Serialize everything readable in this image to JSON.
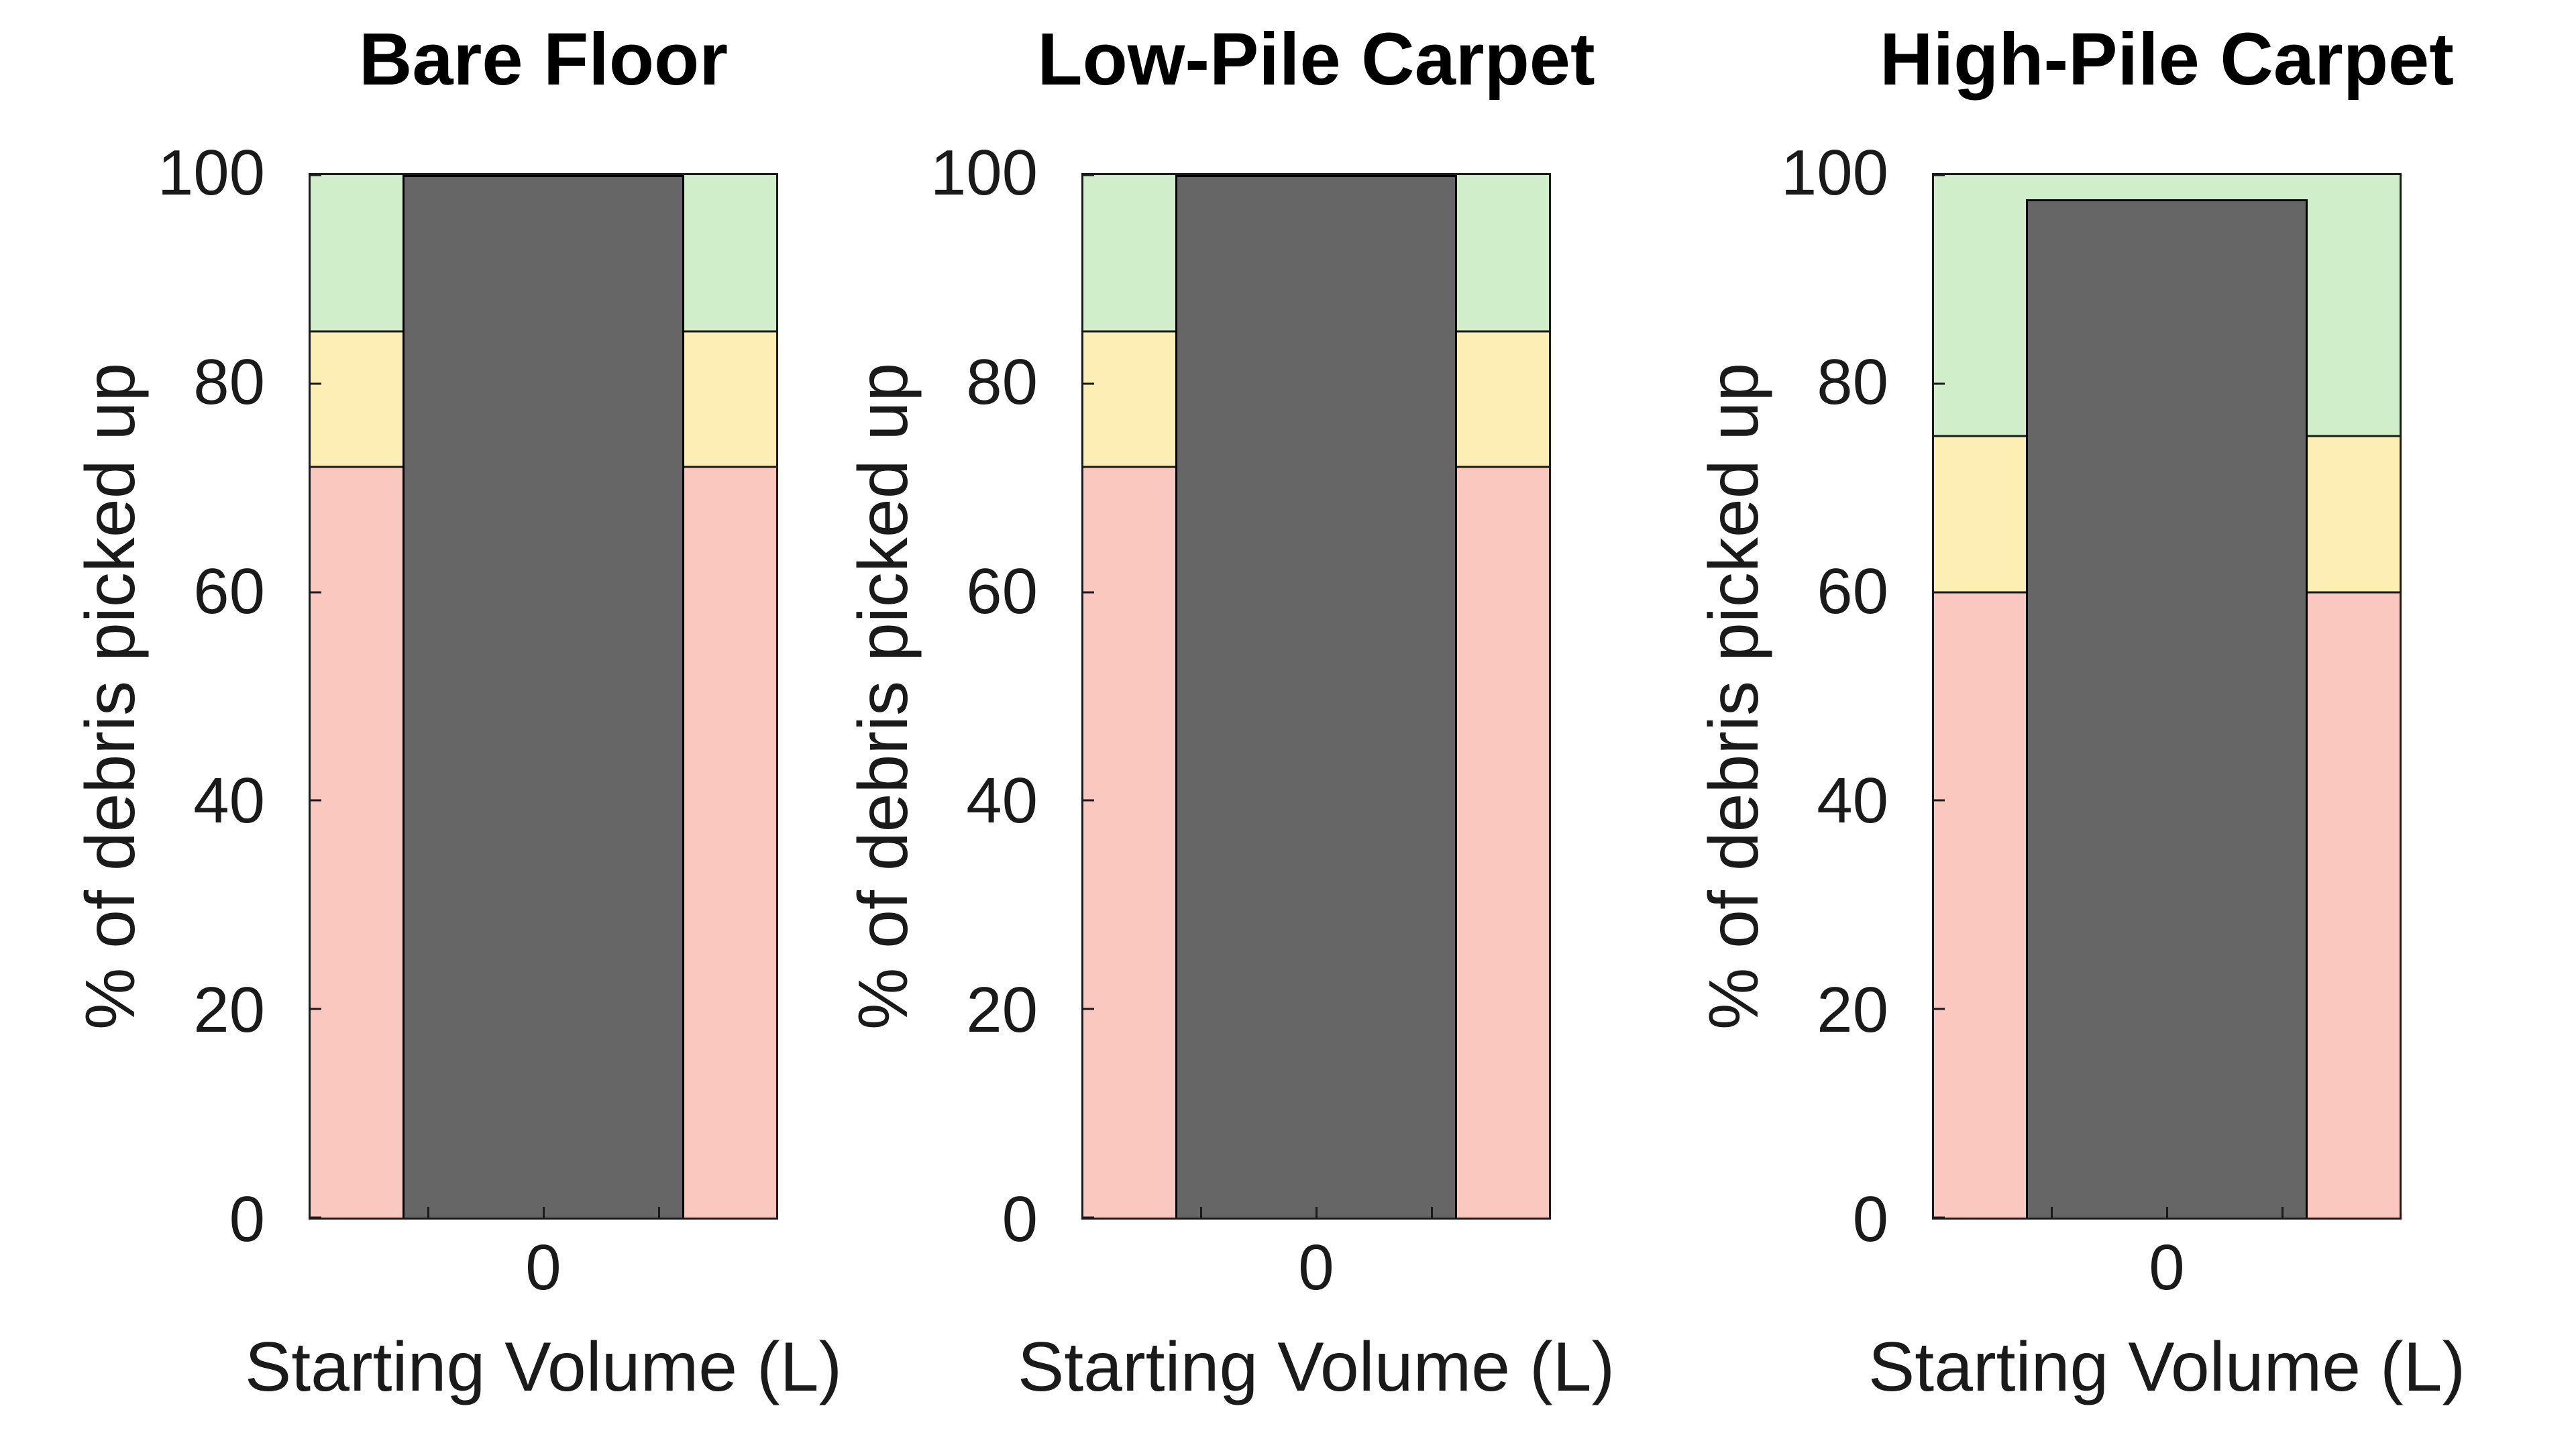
{
  "chart_data": {
    "type": "bar",
    "layout": "three vertical-bar subplots side by side, shared style",
    "shared": {
      "ylabel": "% of debris picked up",
      "xlabel": "Starting Volume (L)",
      "xtick": "0",
      "yticks": [
        0,
        20,
        40,
        60,
        80,
        100
      ],
      "ylim": [
        0,
        100
      ],
      "grid": "off",
      "legend": "none"
    },
    "panels": [
      {
        "id": "bare-floor",
        "title": "Bare Floor",
        "bar_value": 100,
        "zones": {
          "red": [
            0,
            72
          ],
          "yellow": [
            72,
            85
          ],
          "green": [
            85,
            100
          ]
        }
      },
      {
        "id": "low-pile-carpet",
        "title": "Low-Pile Carpet",
        "bar_value": 100,
        "zones": {
          "red": [
            0,
            72
          ],
          "yellow": [
            72,
            85
          ],
          "green": [
            85,
            100
          ]
        }
      },
      {
        "id": "high-pile-carpet",
        "title": "High-Pile Carpet",
        "bar_value": 97.7,
        "zones": {
          "red": [
            0,
            60
          ],
          "yellow": [
            60,
            75
          ],
          "green": [
            75,
            100
          ]
        }
      }
    ],
    "colors": {
      "red_zone": "#fac8bf",
      "yellow_zone": "#fdeeb3",
      "green_zone": "#d1eecb",
      "bar": "#666666",
      "edge": "#1a1a1a"
    }
  }
}
